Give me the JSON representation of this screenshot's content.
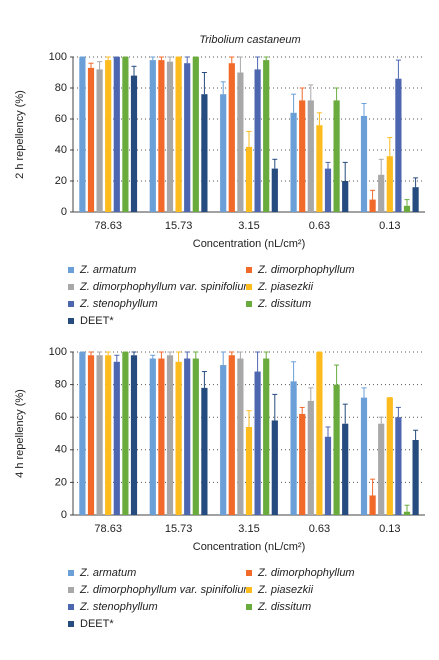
{
  "chart_data": [
    {
      "type": "bar",
      "title": "Tribolium castaneum",
      "ylabel": "2 h repellency (%)",
      "xlabel": "Concentration (nL/cm²)",
      "categories": [
        "78.63",
        "15.73",
        "3.15",
        "0.63",
        "0.13"
      ],
      "ylim": [
        0,
        100
      ],
      "yticks": [
        0,
        20,
        40,
        60,
        80,
        100
      ],
      "grid": true,
      "series": [
        {
          "name": "Z. armatum",
          "color": "#6a9fd8",
          "italic": true,
          "values": [
            100,
            98,
            76,
            64,
            62
          ],
          "errors": [
            0,
            2,
            8,
            12,
            8
          ]
        },
        {
          "name": "Z. dimorphophyllum",
          "color": "#f26a2a",
          "italic": true,
          "values": [
            93,
            98,
            96,
            72,
            8
          ],
          "errors": [
            3,
            2,
            4,
            8,
            6
          ]
        },
        {
          "name": "Z. dimorphophyllum var. spinifolium",
          "color": "#a8a8a8",
          "italic": true,
          "values": [
            92,
            97,
            90,
            72,
            24
          ],
          "errors": [
            5,
            3,
            10,
            10,
            10
          ]
        },
        {
          "name": "Z. piasezkii",
          "color": "#fdbb1e",
          "italic": true,
          "values": [
            98,
            100,
            42,
            56,
            36
          ],
          "errors": [
            2,
            0,
            10,
            8,
            12
          ]
        },
        {
          "name": "Z. stenophyllum",
          "color": "#4c66b0",
          "italic": true,
          "values": [
            100,
            96,
            92,
            28,
            86
          ],
          "errors": [
            0,
            4,
            8,
            4,
            12
          ]
        },
        {
          "name": "Z. dissitum",
          "color": "#6aab3e",
          "italic": true,
          "values": [
            100,
            100,
            98,
            72,
            4
          ],
          "errors": [
            0,
            0,
            2,
            8,
            4
          ]
        },
        {
          "name": "DEET*",
          "color": "#264b7e",
          "italic": false,
          "values": [
            88,
            76,
            28,
            20,
            16
          ],
          "errors": [
            6,
            14,
            6,
            12,
            6
          ]
        }
      ]
    },
    {
      "type": "bar",
      "ylabel": "4 h repellency (%)",
      "xlabel": "Concentration (nL/cm²)",
      "categories": [
        "78.63",
        "15.73",
        "3.15",
        "0.63",
        "0.13"
      ],
      "ylim": [
        0,
        100
      ],
      "yticks": [
        0,
        20,
        40,
        60,
        80,
        100
      ],
      "grid": true,
      "series": [
        {
          "name": "Z. armatum",
          "color": "#6a9fd8",
          "italic": true,
          "values": [
            100,
            96,
            92,
            82,
            72
          ],
          "errors": [
            0,
            2,
            8,
            12,
            6
          ]
        },
        {
          "name": "Z. dimorphophyllum",
          "color": "#f26a2a",
          "italic": true,
          "values": [
            98,
            96,
            98,
            62,
            12
          ],
          "errors": [
            2,
            4,
            2,
            4,
            10
          ]
        },
        {
          "name": "Z. dimorphophyllum var. spinifolium",
          "color": "#a8a8a8",
          "italic": true,
          "values": [
            98,
            98,
            96,
            70,
            56
          ],
          "errors": [
            2,
            2,
            4,
            8,
            4
          ]
        },
        {
          "name": "Z. piasezkii",
          "color": "#fdbb1e",
          "italic": true,
          "values": [
            98,
            94,
            54,
            100,
            72
          ],
          "errors": [
            2,
            6,
            10,
            0,
            0
          ]
        },
        {
          "name": "Z. stenophyllum",
          "color": "#4c66b0",
          "italic": true,
          "values": [
            94,
            96,
            88,
            48,
            60
          ],
          "errors": [
            4,
            4,
            12,
            6,
            6
          ]
        },
        {
          "name": "Z. dissitum",
          "color": "#6aab3e",
          "italic": true,
          "values": [
            100,
            96,
            96,
            80,
            2
          ],
          "errors": [
            0,
            4,
            4,
            12,
            4
          ]
        },
        {
          "name": "DEET*",
          "color": "#264b7e",
          "italic": false,
          "values": [
            98,
            78,
            58,
            56,
            46
          ],
          "errors": [
            2,
            10,
            16,
            12,
            6
          ]
        }
      ]
    }
  ]
}
